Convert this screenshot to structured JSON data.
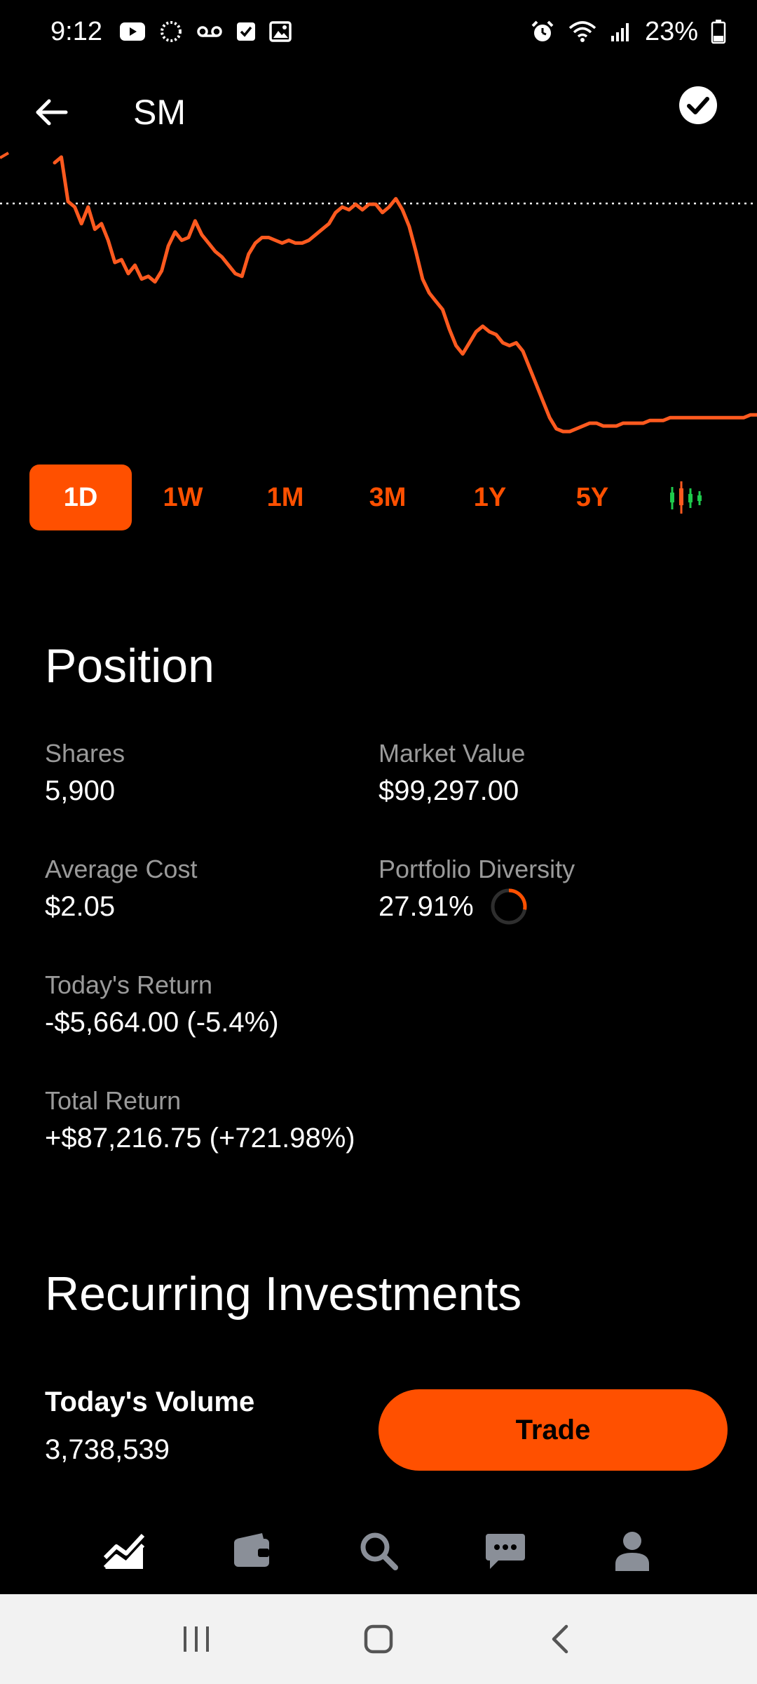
{
  "status_bar": {
    "time": "9:12",
    "battery": "23%",
    "icons_left": [
      "youtube-icon",
      "sync-icon",
      "voicemail-icon",
      "checkbox-icon",
      "gallery-icon"
    ],
    "icons_right": [
      "alarm-icon",
      "wifi-icon",
      "signal-icon",
      "battery-icon"
    ]
  },
  "header": {
    "ticker": "SM",
    "back_icon": "back-arrow-icon",
    "action_icon": "check-circle-icon"
  },
  "chart_data": {
    "type": "line",
    "title": "",
    "xlabel": "",
    "ylabel": "",
    "color": "#ff5a1f",
    "reference_line": "dotted",
    "x": [
      0,
      1,
      2,
      3,
      4,
      5,
      6,
      7,
      8,
      9,
      10,
      11,
      12,
      13,
      14,
      15,
      16,
      17,
      18,
      19,
      20,
      21,
      22,
      23,
      24,
      25,
      26,
      27,
      28,
      29,
      30,
      31,
      32,
      33,
      34,
      35,
      36,
      37,
      38,
      39,
      40,
      41,
      42,
      43,
      44,
      45,
      46,
      47,
      48,
      49,
      50,
      51,
      52,
      53,
      54,
      55,
      56,
      57,
      58,
      59,
      60,
      61,
      62,
      63,
      64,
      65,
      66,
      67,
      68,
      69,
      70,
      71,
      72,
      73,
      74,
      75,
      76,
      77,
      78,
      79,
      80,
      81,
      82,
      83,
      84,
      85,
      86,
      87,
      88,
      89,
      90,
      91,
      92,
      93,
      94,
      95,
      96,
      97,
      98,
      99,
      100,
      101,
      102,
      103,
      104,
      105
    ],
    "values": [
      0.97,
      0.99,
      0.83,
      0.81,
      0.75,
      0.81,
      0.73,
      0.75,
      0.69,
      0.61,
      0.62,
      0.57,
      0.6,
      0.55,
      0.56,
      0.54,
      0.58,
      0.67,
      0.72,
      0.69,
      0.7,
      0.76,
      0.71,
      0.68,
      0.65,
      0.63,
      0.6,
      0.57,
      0.56,
      0.64,
      0.68,
      0.7,
      0.7,
      0.69,
      0.68,
      0.69,
      0.68,
      0.68,
      0.69,
      0.71,
      0.73,
      0.75,
      0.79,
      0.81,
      0.8,
      0.82,
      0.8,
      0.82,
      0.82,
      0.79,
      0.81,
      0.84,
      0.8,
      0.74,
      0.65,
      0.55,
      0.5,
      0.47,
      0.44,
      0.37,
      0.31,
      0.28,
      0.32,
      0.36,
      0.38,
      0.36,
      0.35,
      0.32,
      0.31,
      0.32,
      0.29,
      0.23,
      0.17,
      0.11,
      0.05,
      0.01,
      0.0,
      0.0,
      0.01,
      0.02,
      0.03,
      0.03,
      0.02,
      0.02,
      0.02,
      0.03,
      0.03,
      0.03,
      0.03,
      0.04,
      0.04,
      0.04,
      0.05,
      0.05,
      0.05,
      0.05,
      0.05,
      0.05,
      0.05,
      0.05,
      0.05,
      0.05,
      0.05,
      0.05,
      0.06,
      0.06
    ],
    "ylim": [
      0,
      1
    ],
    "grid": false,
    "legend": "none"
  },
  "ranges": {
    "items": [
      "1D",
      "1W",
      "1M",
      "3M",
      "1Y",
      "5Y"
    ],
    "active": "1D",
    "candlestick_icon": "candlestick-icon"
  },
  "position": {
    "title": "Position",
    "shares_label": "Shares",
    "shares_value": "5,900",
    "market_value_label": "Market Value",
    "market_value_value": "$99,297.00",
    "avg_cost_label": "Average Cost",
    "avg_cost_value": "$2.05",
    "diversity_label": "Portfolio Diversity",
    "diversity_value": "27.91%",
    "diversity_fraction": 0.2791,
    "todays_return_label": "Today's Return",
    "todays_return_value": "-$5,664.00 (-5.4%)",
    "total_return_label": "Total Return",
    "total_return_value": "+$87,216.75 (+721.98%)"
  },
  "recurring": {
    "title": "Recurring Investments"
  },
  "volume": {
    "label": "Today's Volume",
    "value": "3,738,539"
  },
  "trade": {
    "label": "Trade"
  },
  "bottom_nav": {
    "items": [
      "chart-icon",
      "wallet-icon",
      "search-icon",
      "messages-icon",
      "profile-icon"
    ],
    "active": "chart-icon"
  },
  "colors": {
    "accent": "#ff5000",
    "muted": "#9a9a9a",
    "nav_inactive": "#8a8f98"
  }
}
